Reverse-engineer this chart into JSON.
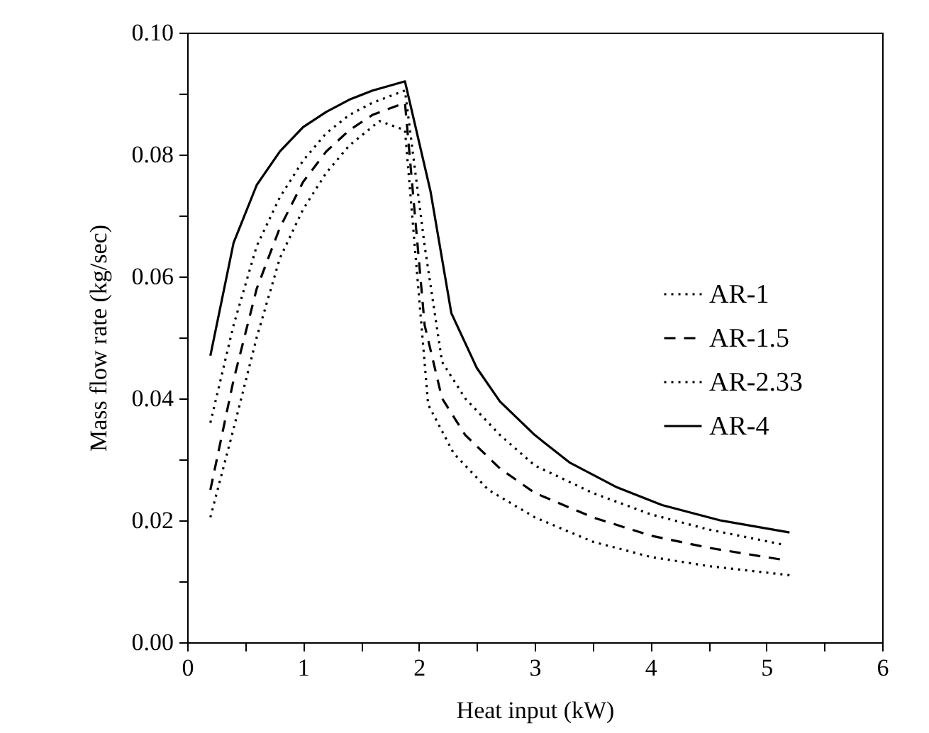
{
  "chart_data": {
    "type": "line",
    "xlabel": "Heat input (kW)",
    "ylabel": "Mass flow rate (kg/sec)",
    "xlim": [
      0,
      6
    ],
    "xticks": [
      0,
      {
        "value": 0.5,
        "label": null
      },
      1,
      {
        "value": 1.5,
        "label": null
      },
      2,
      {
        "value": 2.5,
        "label": null
      },
      3,
      {
        "value": 3.5,
        "label": null
      },
      4,
      {
        "value": 4.5,
        "label": null
      },
      5,
      {
        "value": 5.5,
        "label": null
      },
      6
    ],
    "ylim": [
      0,
      0.1
    ],
    "yticks": [
      {
        "value": 0,
        "label": "0.00"
      },
      {
        "value": 0.01,
        "label": null
      },
      {
        "value": 0.02,
        "label": "0.02"
      },
      {
        "value": 0.03,
        "label": null
      },
      {
        "value": 0.04,
        "label": "0.04"
      },
      {
        "value": 0.05,
        "label": null
      },
      {
        "value": 0.06,
        "label": "0.06"
      },
      {
        "value": 0.07,
        "label": null
      },
      {
        "value": 0.08,
        "label": "0.08"
      },
      {
        "value": 0.09,
        "label": null
      },
      {
        "value": 0.1,
        "label": "0.10"
      }
    ],
    "grid": false,
    "legend": "right",
    "marker": "none",
    "series": [
      {
        "name": "AR-1",
        "color": "#000000",
        "line_style": "dotted",
        "x": [
          0.2,
          0.4,
          0.6,
          0.8,
          1.0,
          1.2,
          1.4,
          1.66,
          1.88,
          2.08,
          2.3,
          2.6,
          3.0,
          3.5,
          4.0,
          4.5,
          5.2
        ],
        "values": [
          0.0205,
          0.035,
          0.05,
          0.063,
          0.071,
          0.077,
          0.0815,
          0.0855,
          0.084,
          0.039,
          0.031,
          0.025,
          0.0205,
          0.0165,
          0.014,
          0.0125,
          0.011
        ]
      },
      {
        "name": "AR-1.5",
        "color": "#000000",
        "line_style": "dashed",
        "x": [
          0.2,
          0.4,
          0.6,
          0.8,
          1.0,
          1.2,
          1.4,
          1.6,
          1.88,
          2.05,
          2.2,
          2.4,
          2.7,
          3.0,
          3.5,
          4.0,
          4.5,
          5.15
        ],
        "values": [
          0.025,
          0.043,
          0.058,
          0.068,
          0.0755,
          0.0805,
          0.084,
          0.0865,
          0.0885,
          0.052,
          0.04,
          0.034,
          0.0285,
          0.0245,
          0.0205,
          0.0175,
          0.0155,
          0.0135
        ]
      },
      {
        "name": "AR-2.33",
        "color": "#000000",
        "line_style": "dotted",
        "x": [
          0.2,
          0.4,
          0.6,
          0.8,
          1.0,
          1.2,
          1.4,
          1.6,
          1.88,
          2.05,
          2.2,
          2.4,
          2.7,
          3.0,
          3.5,
          4.0,
          4.5,
          5.15
        ],
        "values": [
          0.036,
          0.052,
          0.065,
          0.073,
          0.079,
          0.0835,
          0.0865,
          0.0885,
          0.0905,
          0.065,
          0.046,
          0.04,
          0.034,
          0.029,
          0.0245,
          0.021,
          0.0185,
          0.016
        ]
      },
      {
        "name": "AR-4",
        "color": "#000000",
        "line_style": "solid",
        "x": [
          0.2,
          0.4,
          0.6,
          0.8,
          1.0,
          1.2,
          1.4,
          1.6,
          1.88,
          2.1,
          2.28,
          2.5,
          2.7,
          3.0,
          3.3,
          3.7,
          4.1,
          4.6,
          5.2
        ],
        "values": [
          0.047,
          0.0655,
          0.075,
          0.0805,
          0.0845,
          0.087,
          0.089,
          0.0905,
          0.092,
          0.074,
          0.054,
          0.045,
          0.0395,
          0.034,
          0.0295,
          0.0255,
          0.0225,
          0.02,
          0.018
        ]
      }
    ]
  }
}
